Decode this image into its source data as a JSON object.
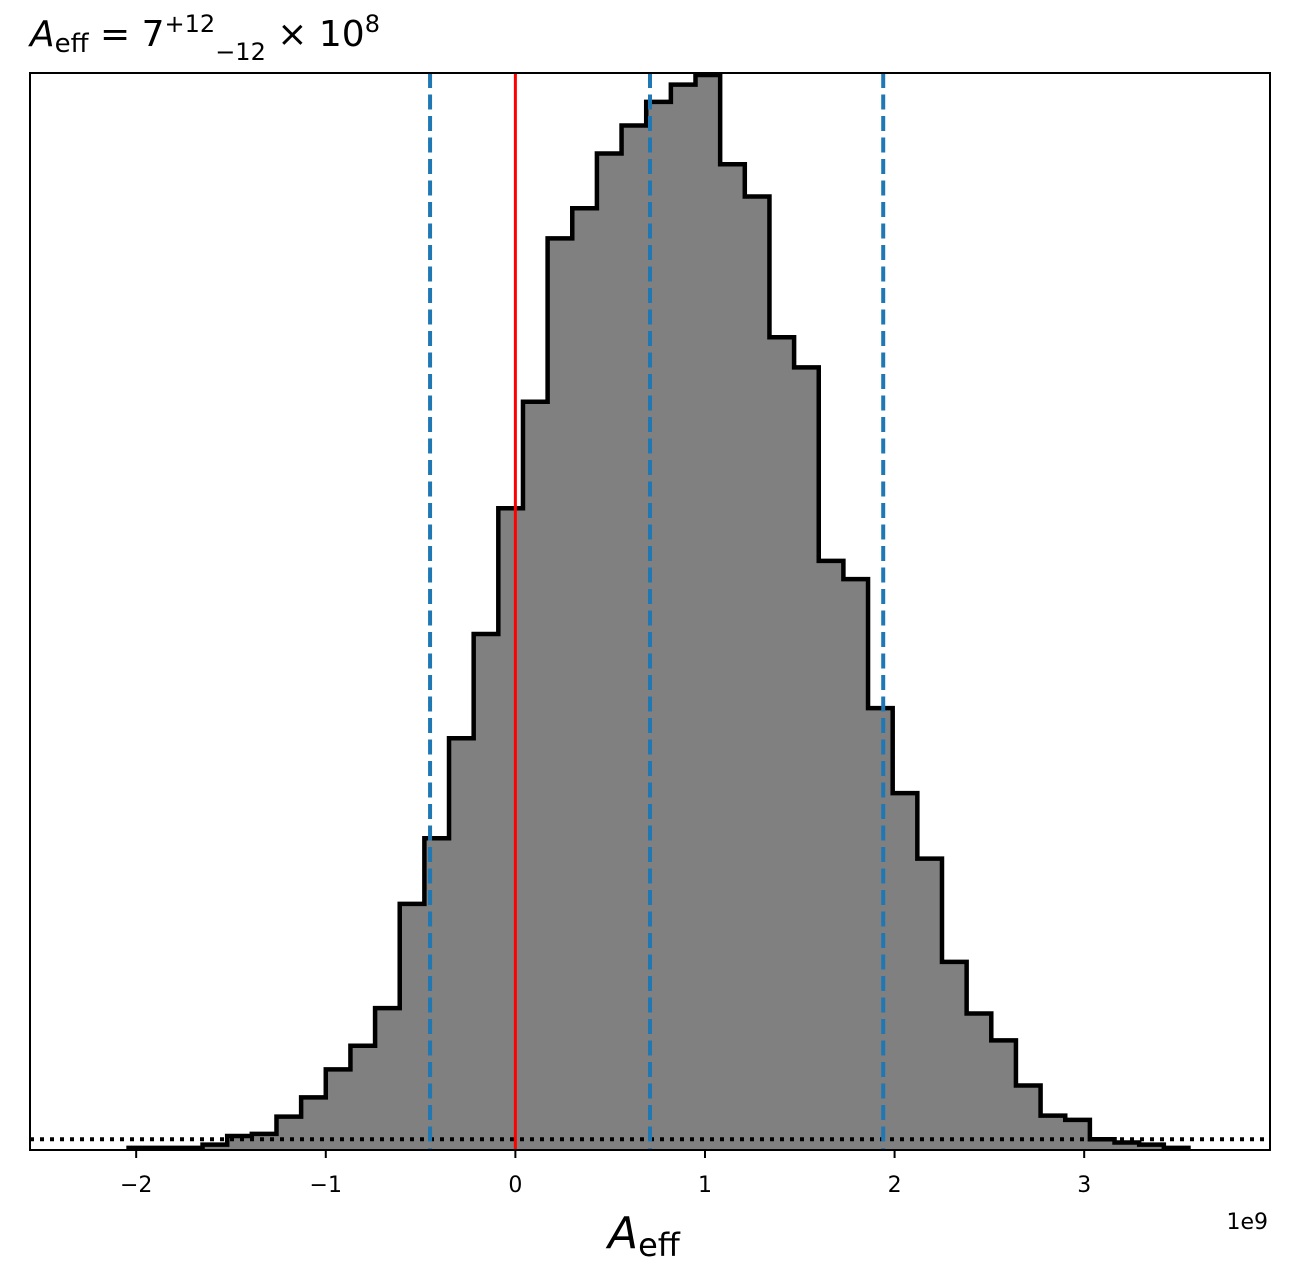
{
  "chart_data": {
    "type": "histogram",
    "title": {
      "symbol": "A",
      "symbol_sub": "eff",
      "eq": " = ",
      "base": "7",
      "sup": "+12",
      "sub": "−12",
      "times": " × ",
      "power_base": "10",
      "power_exp": "8"
    },
    "xlabel": {
      "symbol": "A",
      "sub": "eff"
    },
    "x_offset_label": "1e9",
    "xlim": [
      -2.56,
      3.98
    ],
    "xticks": [
      -2,
      -1,
      0,
      1,
      2,
      3
    ],
    "xtick_labels": [
      "−2",
      "−1",
      "0",
      "1",
      "2",
      "3"
    ],
    "ylim": [
      0,
      1.0
    ],
    "y_axis_visible": false,
    "bin_edges": [
      -2.04,
      -1.91,
      -1.78,
      -1.65,
      -1.52,
      -1.39,
      -1.26,
      -1.13,
      -1.0,
      -0.87,
      -0.74,
      -0.61,
      -0.48,
      -0.35,
      -0.22,
      -0.09,
      0.04,
      0.17,
      0.3,
      0.43,
      0.56,
      0.69,
      0.82,
      0.95,
      1.08,
      1.21,
      1.34,
      1.47,
      1.6,
      1.73,
      1.86,
      1.99,
      2.12,
      2.25,
      2.38,
      2.51,
      2.64,
      2.77,
      2.9,
      3.03,
      3.16,
      3.29,
      3.42,
      3.55
    ],
    "counts": [
      0.002,
      0.002,
      0.002,
      0.005,
      0.013,
      0.015,
      0.031,
      0.049,
      0.075,
      0.097,
      0.132,
      0.229,
      0.29,
      0.383,
      0.48,
      0.597,
      0.696,
      0.848,
      0.876,
      0.927,
      0.953,
      0.975,
      0.991,
      1.0,
      0.917,
      0.887,
      0.756,
      0.728,
      0.548,
      0.531,
      0.411,
      0.332,
      0.271,
      0.175,
      0.127,
      0.102,
      0.06,
      0.032,
      0.028,
      0.01,
      0.007,
      0.005,
      0.002
    ],
    "fill_color": "#808080",
    "edge_color": "#000000",
    "vertical_lines": [
      {
        "x": 0.0,
        "color": "#ff0000",
        "style": "solid"
      },
      {
        "x": -0.45,
        "color": "#1f77b4",
        "style": "dashed"
      },
      {
        "x": 0.71,
        "color": "#1f77b4",
        "style": "dashed"
      },
      {
        "x": 1.94,
        "color": "#1f77b4",
        "style": "dashed"
      }
    ],
    "horizontal_lines": [
      {
        "y": 0.01,
        "color": "#000000",
        "style": "dotted"
      }
    ]
  }
}
